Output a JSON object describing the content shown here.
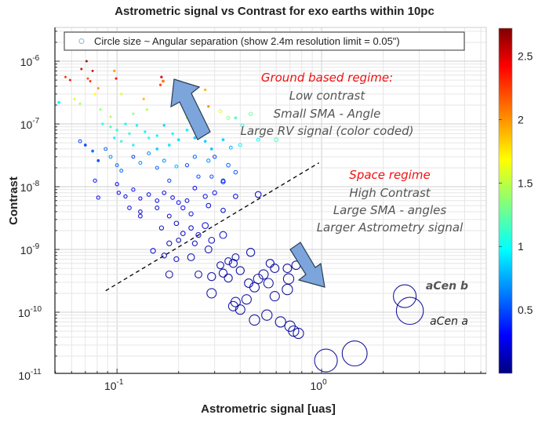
{
  "chart_data": {
    "type": "scatter",
    "title": "Astrometric signal vs Contrast for exo earths within 10pc",
    "xlabel": "Astrometric signal [uas]",
    "ylabel": "Contrast",
    "xscale": "log",
    "yscale": "log",
    "xlim": [
      0.0497,
      6.38
    ],
    "ylim": [
      1.06e-11,
      3.45e-06
    ],
    "x_ticks": [
      {
        "value": 0.1,
        "base": "10",
        "exp": "-1"
      },
      {
        "value": 1,
        "base": "10",
        "exp": "0"
      }
    ],
    "y_ticks": [
      {
        "value": 1e-06,
        "base": "10",
        "exp": "-6"
      },
      {
        "value": 1e-07,
        "base": "10",
        "exp": "-7"
      },
      {
        "value": 1e-08,
        "base": "10",
        "exp": "-8"
      },
      {
        "value": 1e-09,
        "base": "10",
        "exp": "-9"
      },
      {
        "value": 1e-10,
        "base": "10",
        "exp": "-10"
      },
      {
        "value": 1e-11,
        "base": "10",
        "exp": "-11"
      }
    ],
    "grid": true,
    "legend": {
      "position": "top",
      "entries": [
        "Circle size ~ Angular separation (show 2.4m resolution limit = 0.05\")"
      ]
    },
    "colorbar": {
      "label": "RV signal (color coded)",
      "range": [
        0,
        2.72
      ],
      "ticks": [
        "0.5",
        "1",
        "1.5",
        "2",
        "2.5"
      ],
      "tick_values": [
        0.5,
        1,
        1.5,
        2,
        2.5
      ],
      "colormap": "jet"
    },
    "annotations": {
      "ground_title": "Ground based regime:",
      "ground_lines": [
        "Low contrast",
        "Small SMA - Angle",
        "Large RV signal (color coded)"
      ],
      "space_title": "Space regime",
      "space_lines": [
        "High Contrast",
        "Large SMA - angles",
        "Larger Astrometry signal"
      ],
      "acen_b": "aCen b",
      "acen_a": "aCen a",
      "divider_line": [
        [
          0.088,
          2.2e-10
        ],
        [
          0.97,
          2.4e-08
        ]
      ]
    },
    "point_fields": [
      "astrometric_signal_uas",
      "contrast",
      "rv_signal",
      "angular_separation_arcsec"
    ],
    "points": [
      [
        0.067,
        7.5e-07,
        2.6,
        0.01
      ],
      [
        0.071,
        1e-06,
        2.7,
        0.01
      ],
      [
        0.076,
        7e-07,
        2.5,
        0.01
      ],
      [
        0.056,
        5.6e-07,
        2.3,
        0.01
      ],
      [
        0.059,
        5e-07,
        2.4,
        0.01
      ],
      [
        0.072,
        5.3e-07,
        2.2,
        0.01
      ],
      [
        0.074,
        4.8e-07,
        2.3,
        0.01
      ],
      [
        0.081,
        3.7e-07,
        2.0,
        0.01
      ],
      [
        0.097,
        7e-07,
        2.0,
        0.012
      ],
      [
        0.099,
        5.3e-07,
        2.4,
        0.012
      ],
      [
        0.168,
        4.8e-07,
        2.1,
        0.02
      ],
      [
        0.165,
        5.6e-07,
        2.5,
        0.015
      ],
      [
        0.163,
        4.2e-07,
        2.2,
        0.015
      ],
      [
        0.28,
        1.9e-07,
        2.0,
        0.015
      ],
      [
        0.135,
        2.5e-07,
        1.9,
        0.012
      ],
      [
        0.078,
        3e-07,
        1.7,
        0.012
      ],
      [
        0.062,
        2.5e-07,
        1.6,
        0.012
      ],
      [
        0.066,
        2.1e-07,
        1.5,
        0.012
      ],
      [
        0.083,
        1.7e-07,
        1.4,
        0.012
      ],
      [
        0.105,
        3e-07,
        1.6,
        0.012
      ],
      [
        0.093,
        1.3e-07,
        1.5,
        0.012
      ],
      [
        0.2,
        3e-07,
        1.7,
        0.015
      ],
      [
        0.22,
        1.25e-07,
        1.5,
        0.015
      ],
      [
        0.25,
        1.3e-07,
        1.5,
        0.015
      ],
      [
        0.32,
        1.6e-07,
        1.6,
        0.025
      ],
      [
        0.27,
        3.5e-07,
        1.9,
        0.015
      ],
      [
        0.35,
        1.25e-07,
        1.4,
        0.025
      ],
      [
        0.12,
        1.45e-07,
        1.4,
        0.012
      ],
      [
        0.14,
        1.7e-07,
        1.5,
        0.012
      ],
      [
        0.085,
        1e-07,
        1.1,
        0.015
      ],
      [
        0.093,
        9e-08,
        1.2,
        0.015
      ],
      [
        0.1,
        8e-08,
        1.1,
        0.015
      ],
      [
        0.11,
        1e-07,
        1.0,
        0.015
      ],
      [
        0.115,
        7e-08,
        1.1,
        0.015
      ],
      [
        0.125,
        9.5e-08,
        1.0,
        0.015
      ],
      [
        0.137,
        7.5e-08,
        1.0,
        0.015
      ],
      [
        0.143,
        6e-08,
        1.1,
        0.015
      ],
      [
        0.157,
        6.5e-08,
        1.0,
        0.015
      ],
      [
        0.17,
        9.5e-08,
        0.9,
        0.015
      ],
      [
        0.187,
        7e-08,
        1.0,
        0.015
      ],
      [
        0.2,
        5.6e-08,
        0.95,
        0.018
      ],
      [
        0.22,
        8e-08,
        1.0,
        0.018
      ],
      [
        0.24,
        6e-08,
        0.9,
        0.018
      ],
      [
        0.27,
        5.3e-08,
        0.9,
        0.02
      ],
      [
        0.29,
        4e-08,
        0.85,
        0.02
      ],
      [
        0.33,
        5.6e-08,
        0.9,
        0.02
      ],
      [
        0.36,
        4.2e-08,
        0.8,
        0.025
      ],
      [
        0.4,
        4.6e-08,
        1.0,
        0.025
      ],
      [
        0.49,
        5.6e-08,
        1.0,
        0.025
      ],
      [
        0.6,
        5.6e-08,
        1.2,
        0.04
      ],
      [
        0.38,
        1.25e-07,
        1.2,
        0.02
      ],
      [
        0.41,
        9.5e-08,
        1.1,
        0.025
      ],
      [
        0.45,
        1.45e-07,
        1.3,
        0.03
      ],
      [
        0.12,
        4.6e-08,
        1.0,
        0.015
      ],
      [
        0.105,
        5.3e-08,
        1.1,
        0.015
      ],
      [
        0.097,
        6e-08,
        1.0,
        0.015
      ],
      [
        0.157,
        4e-08,
        0.9,
        0.018
      ],
      [
        0.18,
        4.6e-08,
        0.95,
        0.018
      ],
      [
        0.052,
        2.2e-07,
        1.0,
        0.02
      ],
      [
        0.07,
        4.6e-08,
        0.5,
        0.02
      ],
      [
        0.076,
        3.7e-08,
        0.6,
        0.02
      ],
      [
        0.081,
        2.6e-08,
        0.5,
        0.02
      ],
      [
        0.088,
        4e-08,
        0.6,
        0.025
      ],
      [
        0.093,
        3e-08,
        0.7,
        0.025
      ],
      [
        0.1,
        2.2e-08,
        0.6,
        0.025
      ],
      [
        0.105,
        1.8e-08,
        0.6,
        0.025
      ],
      [
        0.12,
        3e-08,
        0.5,
        0.025
      ],
      [
        0.13,
        2.4e-08,
        0.7,
        0.025
      ],
      [
        0.143,
        3.4e-08,
        0.7,
        0.025
      ],
      [
        0.157,
        2e-08,
        0.6,
        0.025
      ],
      [
        0.17,
        2.6e-08,
        0.7,
        0.025
      ],
      [
        0.195,
        2.1e-08,
        0.8,
        0.025
      ],
      [
        0.22,
        2.2e-08,
        0.5,
        0.03
      ],
      [
        0.24,
        3e-08,
        0.6,
        0.03
      ],
      [
        0.28,
        2.6e-08,
        0.7,
        0.03
      ],
      [
        0.3,
        3e-08,
        0.5,
        0.03
      ],
      [
        0.35,
        2.2e-08,
        0.6,
        0.035
      ],
      [
        0.38,
        1.7e-08,
        0.55,
        0.035
      ],
      [
        0.25,
        1.45e-08,
        0.5,
        0.03
      ],
      [
        0.29,
        1.45e-08,
        0.5,
        0.03
      ],
      [
        0.33,
        1.25e-08,
        0.5,
        0.035
      ],
      [
        0.18,
        1.25e-08,
        0.5,
        0.03
      ],
      [
        0.066,
        5.3e-08,
        0.5,
        0.025
      ],
      [
        0.1,
        1.1e-08,
        0.3,
        0.03
      ],
      [
        0.102,
        8e-09,
        0.3,
        0.03
      ],
      [
        0.11,
        7e-09,
        0.3,
        0.03
      ],
      [
        0.12,
        9e-09,
        0.35,
        0.03
      ],
      [
        0.13,
        6.5e-09,
        0.3,
        0.03
      ],
      [
        0.143,
        7.5e-09,
        0.3,
        0.035
      ],
      [
        0.157,
        6e-09,
        0.3,
        0.035
      ],
      [
        0.17,
        8e-09,
        0.3,
        0.035
      ],
      [
        0.187,
        6.7e-09,
        0.3,
        0.035
      ],
      [
        0.2,
        5.6e-09,
        0.3,
        0.04
      ],
      [
        0.22,
        6e-09,
        0.25,
        0.04
      ],
      [
        0.24,
        9.5e-09,
        0.3,
        0.04
      ],
      [
        0.27,
        7e-09,
        0.25,
        0.045
      ],
      [
        0.3,
        8e-09,
        0.3,
        0.045
      ],
      [
        0.33,
        1.2e-08,
        0.3,
        0.045
      ],
      [
        0.38,
        7e-09,
        0.25,
        0.05
      ],
      [
        0.081,
        6.7e-09,
        0.3,
        0.03
      ],
      [
        0.115,
        4.6e-09,
        0.25,
        0.035
      ],
      [
        0.13,
        4e-09,
        0.2,
        0.035
      ],
      [
        0.157,
        4.6e-09,
        0.2,
        0.04
      ],
      [
        0.18,
        3.4e-09,
        0.2,
        0.04
      ],
      [
        0.21,
        4.6e-09,
        0.3,
        0.045
      ],
      [
        0.23,
        3.7e-09,
        0.25,
        0.045
      ],
      [
        0.28,
        5e-09,
        0.2,
        0.05
      ],
      [
        0.33,
        4.2e-09,
        0.2,
        0.05
      ],
      [
        0.49,
        7.5e-09,
        0.2,
        0.08
      ],
      [
        0.078,
        1.25e-08,
        0.4,
        0.03
      ],
      [
        0.13,
        3.4e-09,
        0.2,
        0.04
      ],
      [
        0.165,
        2.2e-09,
        0.2,
        0.045
      ],
      [
        0.195,
        2.6e-09,
        0.2,
        0.05
      ],
      [
        0.21,
        1.8e-09,
        0.15,
        0.05
      ],
      [
        0.23,
        2.2e-09,
        0.2,
        0.05
      ],
      [
        0.2,
        1.4e-09,
        0.15,
        0.05
      ],
      [
        0.24,
        1.25e-09,
        0.15,
        0.06
      ],
      [
        0.25,
        1.7e-09,
        0.2,
        0.06
      ],
      [
        0.18,
        1.25e-09,
        0.15,
        0.06
      ],
      [
        0.17,
        8e-10,
        0.15,
        0.06
      ],
      [
        0.15,
        9.5e-10,
        0.2,
        0.06
      ],
      [
        0.195,
        7e-10,
        0.15,
        0.06
      ],
      [
        0.27,
        2.4e-09,
        0.2,
        0.08
      ],
      [
        0.29,
        1.4e-09,
        0.15,
        0.08
      ],
      [
        0.33,
        1.7e-09,
        0.15,
        0.1
      ],
      [
        0.28,
        1e-09,
        0.1,
        0.1
      ],
      [
        0.23,
        7.5e-10,
        0.1,
        0.1
      ],
      [
        0.32,
        5.6e-10,
        0.1,
        0.1
      ],
      [
        0.35,
        6.5e-10,
        0.1,
        0.1
      ],
      [
        0.38,
        7.5e-10,
        0.1,
        0.1
      ],
      [
        0.45,
        9e-10,
        0.1,
        0.12
      ],
      [
        0.56,
        6e-10,
        0.1,
        0.12
      ],
      [
        0.18,
        4e-10,
        0.1,
        0.1
      ],
      [
        0.25,
        4e-10,
        0.1,
        0.1
      ],
      [
        0.29,
        3.7e-10,
        0.1,
        0.12
      ],
      [
        0.33,
        4.2e-10,
        0.1,
        0.12
      ],
      [
        0.35,
        3.5e-10,
        0.1,
        0.12
      ],
      [
        0.4,
        4.6e-10,
        0.1,
        0.12
      ],
      [
        0.49,
        3.4e-10,
        0.08,
        0.15
      ],
      [
        0.52,
        4e-10,
        0.08,
        0.15
      ],
      [
        0.47,
        2.5e-10,
        0.08,
        0.15
      ],
      [
        0.55,
        2.9e-10,
        0.08,
        0.15
      ],
      [
        0.59,
        1.8e-10,
        0.08,
        0.15
      ],
      [
        0.43,
        1.6e-10,
        0.08,
        0.15
      ],
      [
        0.38,
        1.45e-10,
        0.08,
        0.15
      ],
      [
        0.4,
        1.1e-10,
        0.08,
        0.15
      ],
      [
        0.37,
        1.25e-10,
        0.08,
        0.15
      ],
      [
        0.29,
        2e-10,
        0.08,
        0.15
      ],
      [
        0.47,
        7.5e-11,
        0.06,
        0.17
      ],
      [
        0.54,
        9e-11,
        0.06,
        0.17
      ],
      [
        0.63,
        7e-11,
        0.06,
        0.17
      ],
      [
        0.7,
        6e-11,
        0.06,
        0.17
      ],
      [
        0.73,
        5e-11,
        0.06,
        0.17
      ],
      [
        0.77,
        4.6e-11,
        0.06,
        0.17
      ],
      [
        0.69,
        3.4e-10,
        0.06,
        0.17
      ],
      [
        0.68,
        2.3e-10,
        0.06,
        0.17
      ],
      [
        0.59,
        5e-10,
        0.07,
        0.13
      ],
      [
        0.44,
        2.9e-10,
        0.08,
        0.13
      ],
      [
        0.68,
        5e-10,
        0.07,
        0.13
      ],
      [
        0.75,
        5.6e-10,
        0.07,
        0.13
      ],
      [
        0.37,
        6e-10,
        0.1,
        0.12
      ],
      [
        1.05,
        1.7e-11,
        0.05,
        0.45
      ],
      [
        1.45,
        2.2e-11,
        0.05,
        0.5
      ],
      [
        2.55,
        1.8e-10,
        0.05,
        0.45
      ],
      [
        2.7,
        1.05e-10,
        0.05,
        0.55
      ]
    ]
  }
}
